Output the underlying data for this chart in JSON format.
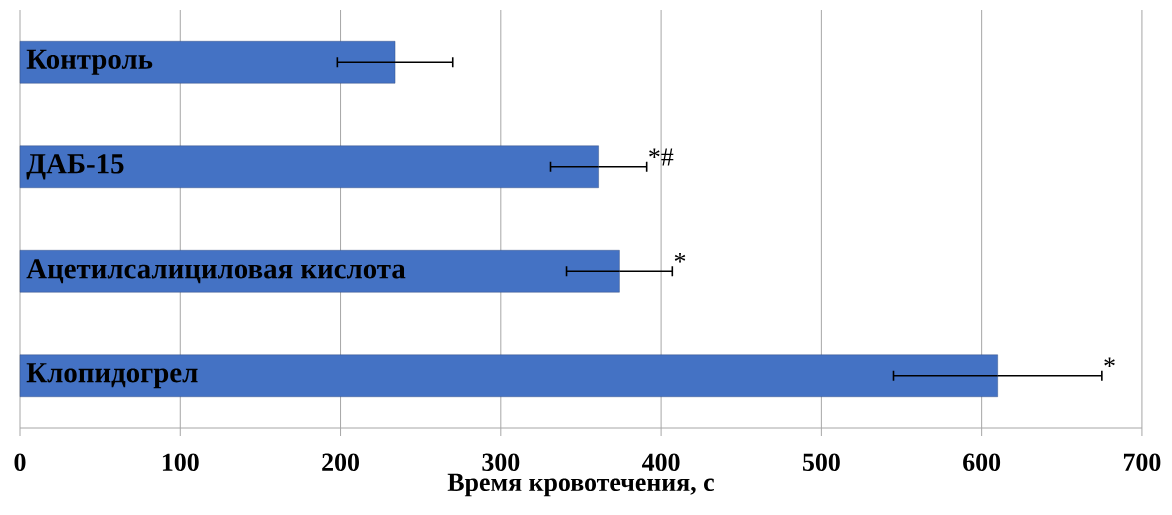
{
  "chart_data": {
    "type": "bar",
    "orientation": "horizontal",
    "xlabel": "Время кровотечения, с",
    "categories": [
      "Контроль",
      "ДАБ-15",
      "Ацетилсалициловая кислота",
      "Клопидогрел"
    ],
    "values": [
      234,
      361,
      374,
      610
    ],
    "errors": [
      36,
      30,
      33,
      65
    ],
    "color": "#4472c4",
    "xlim": [
      0,
      700
    ],
    "xticks": [
      0,
      100,
      200,
      300,
      400,
      500,
      600,
      700
    ],
    "grid": "x",
    "annotations": [
      {
        "text": "*#",
        "x": 391,
        "y": "ДАБ-15"
      },
      {
        "text": "*",
        "x": 407,
        "y": "Ацетилсалициловая кислота"
      },
      {
        "text": "*",
        "x": 675,
        "y": "Клопидогрел"
      }
    ]
  }
}
